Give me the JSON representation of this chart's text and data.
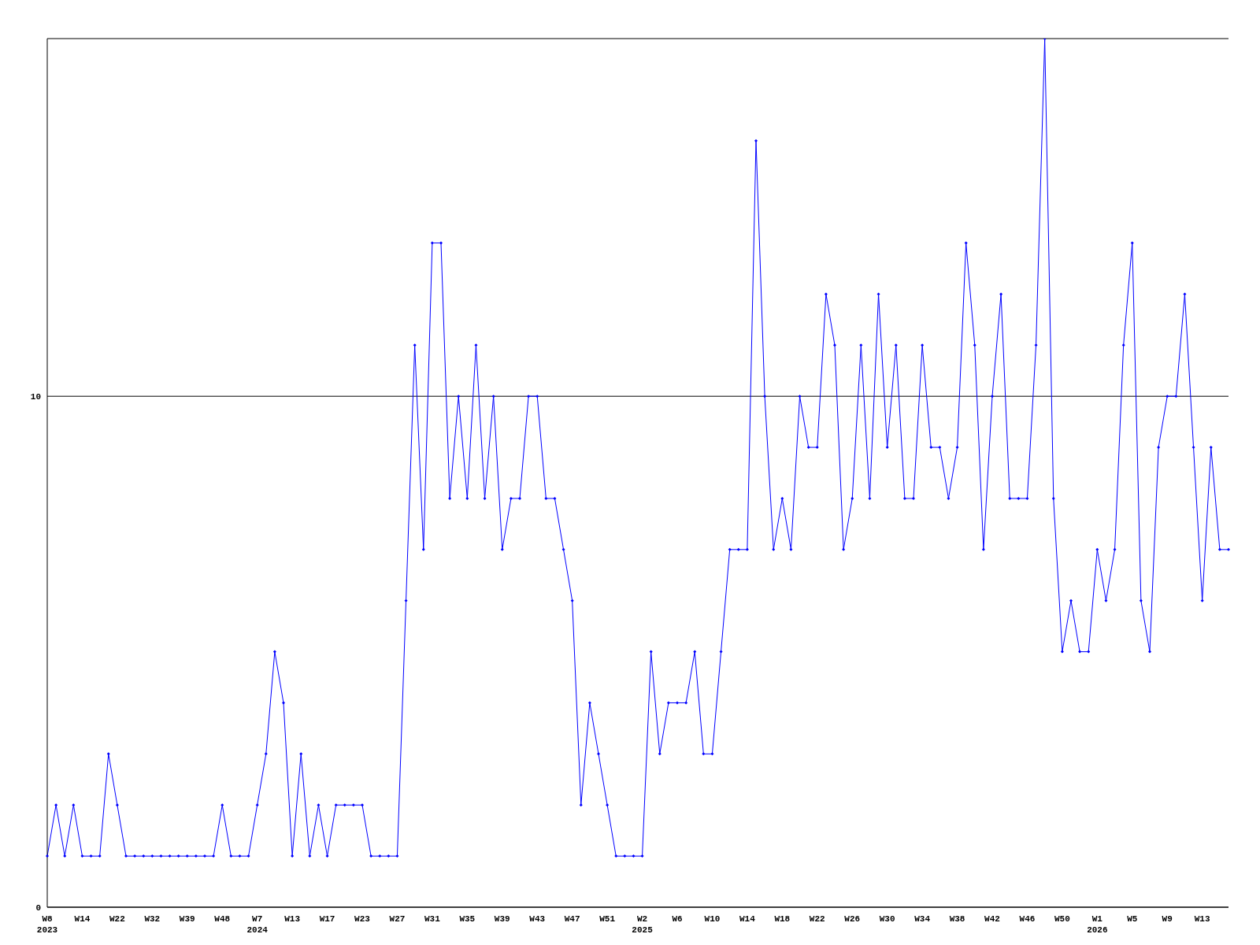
{
  "chart_data": {
    "type": "line",
    "categories": [
      "W8\n2023",
      null,
      null,
      null,
      "W14",
      null,
      null,
      null,
      "W22",
      null,
      null,
      null,
      "W32",
      null,
      null,
      null,
      "W39",
      null,
      null,
      null,
      "W48",
      null,
      null,
      null,
      "W7\n2024",
      null,
      null,
      null,
      "W13",
      null,
      null,
      null,
      "W17",
      null,
      null,
      null,
      "W23",
      null,
      null,
      null,
      "W27",
      null,
      null,
      null,
      "W31",
      null,
      null,
      null,
      "W35",
      null,
      null,
      null,
      "W39",
      null,
      null,
      null,
      "W43",
      null,
      null,
      null,
      "W47",
      null,
      null,
      null,
      "W51",
      null,
      null,
      null,
      "W2\n2025",
      null,
      null,
      null,
      "W6",
      null,
      null,
      null,
      "W10",
      null,
      null,
      null,
      "W14",
      null,
      null,
      null,
      "W18",
      null,
      null,
      null,
      "W22",
      null,
      null,
      null,
      "W26",
      null,
      null,
      null,
      "W30",
      null,
      null,
      null,
      "W34",
      null,
      null,
      null,
      "W38",
      null,
      null,
      null,
      "W42",
      null,
      null,
      null,
      "W46",
      null,
      null,
      null,
      "W50",
      null,
      null,
      null,
      "W1\n2026",
      null,
      null,
      null,
      "W5",
      null,
      null,
      null,
      "W9",
      null,
      null,
      null,
      "W13",
      null,
      null,
      null
    ],
    "series": [
      {
        "color": "#0000ff",
        "values": [
          1,
          2,
          1,
          2,
          1,
          1,
          1,
          3,
          2,
          1,
          1,
          1,
          1,
          1,
          1,
          1,
          1,
          1,
          1,
          1,
          2,
          1,
          1,
          1,
          2,
          3,
          5,
          4,
          1,
          3,
          1,
          2,
          1,
          2,
          2,
          2,
          2,
          1,
          1,
          1,
          1,
          6,
          11,
          7,
          13,
          13,
          8,
          10,
          8,
          11,
          8,
          10,
          7,
          8,
          8,
          10,
          10,
          8,
          8,
          7,
          6,
          2,
          4,
          3,
          2,
          1,
          1,
          1,
          1,
          5,
          3,
          4,
          4,
          4,
          5,
          3,
          3,
          5,
          7,
          7,
          7,
          15,
          10,
          7,
          8,
          7,
          10,
          9,
          9,
          12,
          11,
          7,
          8,
          11,
          8,
          12,
          9,
          11,
          8,
          8,
          11,
          9,
          9,
          8,
          9,
          13,
          11,
          7,
          10,
          12,
          8,
          8,
          8,
          11,
          17,
          8,
          5,
          6,
          5,
          5,
          7,
          6,
          7,
          11,
          13,
          6,
          5,
          9,
          10,
          10,
          12,
          9,
          6,
          9,
          7,
          7
        ]
      }
    ],
    "ylim": [
      0,
      17
    ],
    "yticks": [
      0,
      10
    ],
    "grid": "y",
    "marker": "diamond",
    "line_style": "solid"
  }
}
